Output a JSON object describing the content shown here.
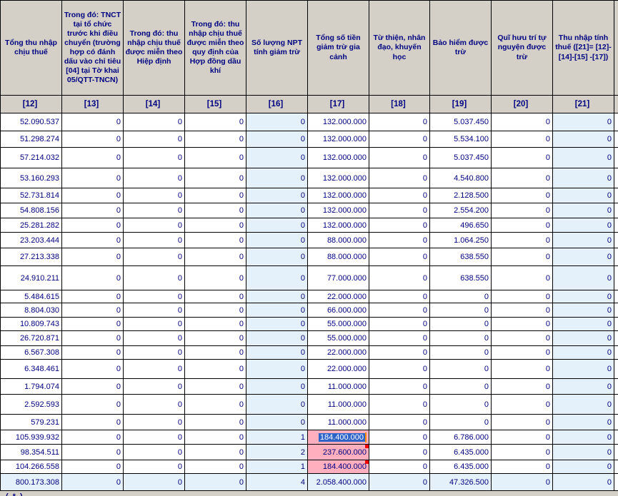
{
  "colors": {
    "header_bg": "#d4d0c8",
    "grid_border": "#000000",
    "text_navy": "#000080",
    "readonly_cell_bg": "#e4f1fb",
    "total_row_bg": "#e4f1fb",
    "warning_cell_bg": "#ffafbe",
    "selection_bg": "#2e63c8",
    "selection_text": "#ffffff",
    "cursor_bar": "#ff8c00",
    "error_marker": "#ff0000"
  },
  "table": {
    "columns": [
      {
        "index_label": "[12]",
        "header": "Tổng thu nhập chịu thuế",
        "readonly": false
      },
      {
        "index_label": "[13]",
        "header": "Trong đó: TNCT tại tổ chức trước khi điều chuyển (trường hợp có đánh dấu vào chỉ tiêu [04] tại Tờ khai 05/QTT-TNCN)",
        "readonly": false
      },
      {
        "index_label": "[14]",
        "header": "Trong đó: thu nhập chịu thuế được miễn theo Hiệp định",
        "readonly": false
      },
      {
        "index_label": "[15]",
        "header": "Trong đó: thu nhập chịu thuế được miễn theo quy định của Hợp đồng dầu khí",
        "readonly": false
      },
      {
        "index_label": "[16]",
        "header": "Số lượng NPT tính giảm trừ",
        "readonly": true
      },
      {
        "index_label": "[17]",
        "header": "Tổng số tiền giảm trừ gia cảnh",
        "readonly": false
      },
      {
        "index_label": "[18]",
        "header": "Từ thiện, nhân đạo, khuyến học",
        "readonly": false
      },
      {
        "index_label": "[19]",
        "header": "Bảo hiểm được trừ",
        "readonly": false
      },
      {
        "index_label": "[20]",
        "header": "Quĩ hưu trí tự nguyện được trừ",
        "readonly": false
      },
      {
        "index_label": "[21]",
        "header": "Thu nhập tính thuế ([21]= [12]-[14]-[15] -[17])",
        "readonly": true
      }
    ],
    "rows": [
      [
        "52.090.537",
        "0",
        "0",
        "0",
        "0",
        "132.000.000",
        "0",
        "5.037.450",
        "0",
        "0"
      ],
      [
        "51.298.274",
        "0",
        "0",
        "0",
        "0",
        "132.000.000",
        "0",
        "5.534.100",
        "0",
        "0"
      ],
      [
        "57.214.032",
        "0",
        "0",
        "0",
        "0",
        "132.000.000",
        "0",
        "5.037.450",
        "0",
        "0"
      ],
      [
        "53.160.293",
        "0",
        "0",
        "0",
        "0",
        "132.000.000",
        "0",
        "4.540.800",
        "0",
        "0"
      ],
      [
        "52.731.814",
        "0",
        "0",
        "0",
        "0",
        "132.000.000",
        "0",
        "2.128.500",
        "0",
        "0"
      ],
      [
        "54.808.156",
        "0",
        "0",
        "0",
        "0",
        "132.000.000",
        "0",
        "2.554.200",
        "0",
        "0"
      ],
      [
        "25.281.282",
        "0",
        "0",
        "0",
        "0",
        "132.000.000",
        "0",
        "496.650",
        "0",
        "0"
      ],
      [
        "23.203.444",
        "0",
        "0",
        "0",
        "0",
        "88.000.000",
        "0",
        "1.064.250",
        "0",
        "0"
      ],
      [
        "27.213.338",
        "0",
        "0",
        "0",
        "0",
        "88.000.000",
        "0",
        "638.550",
        "0",
        "0"
      ],
      [
        "24.910.211",
        "0",
        "0",
        "0",
        "0",
        "77.000.000",
        "0",
        "638.550",
        "0",
        "0"
      ],
      [
        "5.484.615",
        "0",
        "0",
        "0",
        "0",
        "22.000.000",
        "0",
        "0",
        "0",
        "0"
      ],
      [
        "8.804.030",
        "0",
        "0",
        "0",
        "0",
        "66.000.000",
        "0",
        "0",
        "0",
        "0"
      ],
      [
        "10.809.743",
        "0",
        "0",
        "0",
        "0",
        "55.000.000",
        "0",
        "0",
        "0",
        "0"
      ],
      [
        "26.720.871",
        "0",
        "0",
        "0",
        "0",
        "55.000.000",
        "0",
        "0",
        "0",
        "0"
      ],
      [
        "6.567.308",
        "0",
        "0",
        "0",
        "0",
        "22.000.000",
        "0",
        "0",
        "0",
        "0"
      ],
      [
        "6.348.461",
        "0",
        "0",
        "0",
        "0",
        "22.000.000",
        "0",
        "0",
        "0",
        "0"
      ],
      [
        "1.794.074",
        "0",
        "0",
        "0",
        "0",
        "11.000.000",
        "0",
        "0",
        "0",
        "0"
      ],
      [
        "2.592.593",
        "0",
        "0",
        "0",
        "0",
        "11.000.000",
        "0",
        "0",
        "0",
        "0"
      ],
      [
        "579.231",
        "0",
        "0",
        "0",
        "0",
        "11.000.000",
        "0",
        "0",
        "0",
        "0"
      ],
      [
        "105.939.932",
        "0",
        "0",
        "0",
        "1",
        "184.400.000",
        "0",
        "6.786.000",
        "0",
        "0"
      ],
      [
        "98.354.511",
        "0",
        "0",
        "0",
        "2",
        "237.600.000",
        "0",
        "6.435.000",
        "0",
        "0"
      ],
      [
        "104.266.558",
        "0",
        "0",
        "0",
        "1",
        "184.400.000",
        "0",
        "6.435.000",
        "0",
        "0"
      ]
    ],
    "total_row": [
      "800.173.308",
      "0",
      "0",
      "0",
      "4",
      "2.058.400.000",
      "0",
      "47.326.500",
      "0",
      "0"
    ],
    "selection": {
      "row": 20,
      "column": "[17]",
      "value": "184.400.000"
    },
    "warning_cells": [
      {
        "row": 20,
        "column": "[17]"
      },
      {
        "row": 21,
        "column": "[17]"
      },
      {
        "row": 22,
        "column": "[17]"
      }
    ],
    "error_marker_cells": [
      {
        "row": 21,
        "column": "[17]"
      },
      {
        "row": 22,
        "column": "[17]"
      }
    ]
  },
  "footer": {
    "note_partial": "(*)"
  }
}
